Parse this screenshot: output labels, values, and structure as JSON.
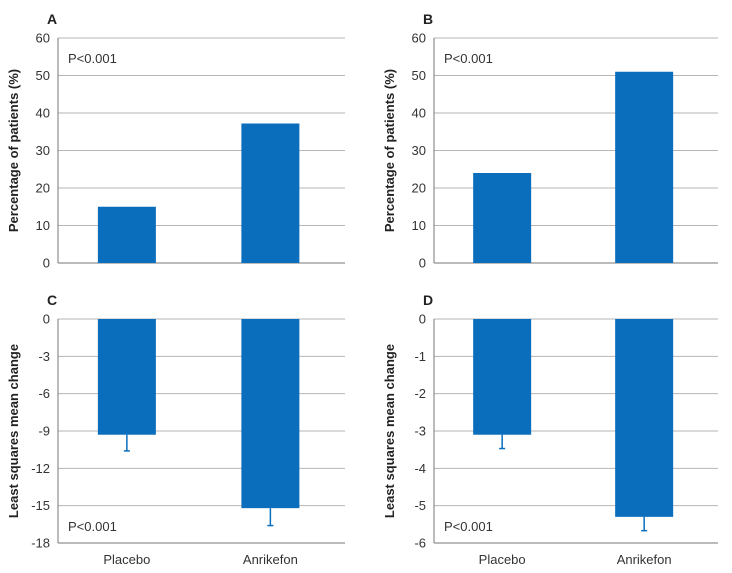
{
  "colors": {
    "bar": "#0a6ebd",
    "grid": "#b5b5b5",
    "axis": "#777777",
    "text": "#333333"
  },
  "chart_data": [
    {
      "id": "A",
      "panel": "A",
      "type": "bar",
      "categories": [
        "Placebo",
        "Anrikefon"
      ],
      "values": [
        15,
        37.2
      ],
      "ylabel": "Percentage of patients (%)",
      "ylim": [
        0,
        60
      ],
      "yticks": [
        0,
        10,
        20,
        30,
        40,
        50,
        60
      ],
      "annotation": "P<0.001",
      "annotation_position": "top-left",
      "show_categories": false,
      "grid": true
    },
    {
      "id": "B",
      "panel": "B",
      "type": "bar",
      "categories": [
        "Placebo",
        "Anrikefon"
      ],
      "values": [
        24,
        51
      ],
      "ylabel": "Percentage of patients (%)",
      "ylim": [
        0,
        60
      ],
      "yticks": [
        0,
        10,
        20,
        30,
        40,
        50,
        60
      ],
      "annotation": "P<0.001",
      "annotation_position": "top-left",
      "show_categories": false,
      "grid": true
    },
    {
      "id": "C",
      "panel": "C",
      "type": "bar",
      "categories": [
        "Placebo",
        "Anrikefon"
      ],
      "values": [
        -9.3,
        -15.2
      ],
      "errors": [
        1.3,
        1.4
      ],
      "ylabel": "Least squares mean change",
      "ylim": [
        -18,
        0
      ],
      "yticks": [
        0,
        -3,
        -6,
        -9,
        -12,
        -15,
        -18
      ],
      "annotation": "P<0.001",
      "annotation_position": "bottom-left",
      "show_categories": true,
      "grid": true
    },
    {
      "id": "D",
      "panel": "D",
      "type": "bar",
      "categories": [
        "Placebo",
        "Anrikefon"
      ],
      "values": [
        -3.1,
        -5.3
      ],
      "errors": [
        0.37,
        0.37
      ],
      "ylabel": "Least squares mean change",
      "ylim": [
        -6,
        0
      ],
      "yticks": [
        0,
        -1,
        -2,
        -3,
        -4,
        -5,
        -6
      ],
      "annotation": "P<0.001",
      "annotation_position": "bottom-left",
      "show_categories": true,
      "grid": true
    }
  ]
}
